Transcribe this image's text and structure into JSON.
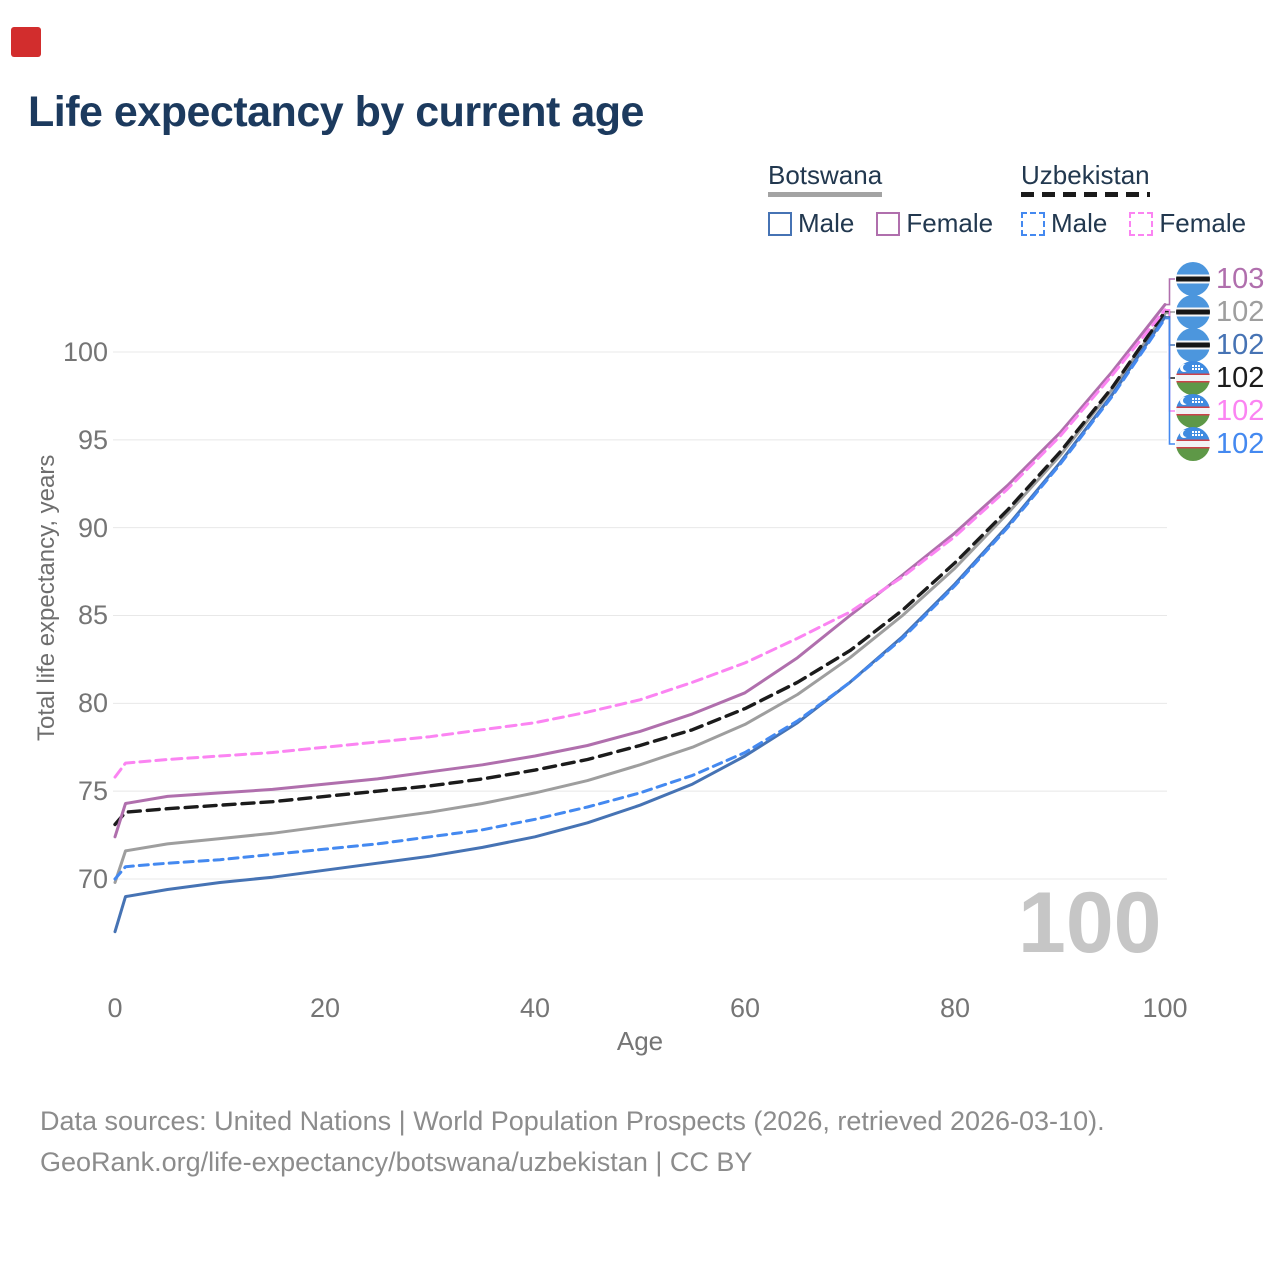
{
  "title": "Life expectancy by current age",
  "marker_color": "#d22d2d",
  "legend": {
    "groups": [
      {
        "label": "Botswana",
        "underline_style": "solid",
        "underline_color": "#a3a3a3",
        "items": [
          {
            "label": "Male",
            "color": "#4673b4",
            "dash": false
          },
          {
            "label": "Female",
            "color": "#b06fad",
            "dash": false
          }
        ]
      },
      {
        "label": "Uzbekistan",
        "underline_style": "dashed",
        "underline_color": "#1a1a1a",
        "items": [
          {
            "label": "Male",
            "color": "#4489f0",
            "dash": true
          },
          {
            "label": "Female",
            "color": "#fb84f2",
            "dash": true
          }
        ]
      }
    ]
  },
  "chart_data": {
    "type": "line",
    "title": "Life expectancy by current age",
    "xlabel": "Age",
    "ylabel": "Total life expectancy, years",
    "x_ticks": [
      0,
      20,
      40,
      60,
      80,
      100
    ],
    "y_ticks": [
      70,
      75,
      80,
      85,
      90,
      95,
      100
    ],
    "xlim": [
      0,
      100
    ],
    "ylim": [
      66,
      104
    ],
    "grid": "horizontal",
    "legend_position": "top-right",
    "hover_age_label": "100",
    "ages": [
      0,
      1,
      5,
      10,
      15,
      20,
      25,
      30,
      35,
      40,
      45,
      50,
      55,
      60,
      65,
      70,
      75,
      80,
      85,
      90,
      95,
      100
    ],
    "series": [
      {
        "name": "Botswana Female",
        "country": "Botswana",
        "sex": "Female",
        "style": "solid",
        "color": "#b06fad",
        "flag": "bw",
        "end_label": "103",
        "values": [
          72.4,
          74.3,
          74.7,
          74.9,
          75.1,
          75.4,
          75.7,
          76.1,
          76.5,
          77.0,
          77.6,
          78.4,
          79.4,
          80.6,
          82.6,
          85.0,
          87.3,
          89.7,
          92.4,
          95.4,
          98.9,
          102.7
        ]
      },
      {
        "name": "Botswana Both sexes",
        "country": "Botswana",
        "sex": "All",
        "style": "solid",
        "color": "#9e9e9e",
        "flag": "bw",
        "end_label": "102",
        "values": [
          69.8,
          71.6,
          72.0,
          72.3,
          72.6,
          73.0,
          73.4,
          73.8,
          74.3,
          74.9,
          75.6,
          76.5,
          77.5,
          78.8,
          80.5,
          82.6,
          85.0,
          87.7,
          90.8,
          94.1,
          97.9,
          102.2
        ]
      },
      {
        "name": "Botswana Male",
        "country": "Botswana",
        "sex": "Male",
        "style": "solid",
        "color": "#4673b4",
        "flag": "bw",
        "end_label": "102",
        "values": [
          67.0,
          69.0,
          69.4,
          69.8,
          70.1,
          70.5,
          70.9,
          71.3,
          71.8,
          72.4,
          73.2,
          74.2,
          75.4,
          77.0,
          78.9,
          81.2,
          83.8,
          86.8,
          90.1,
          93.7,
          97.6,
          102.0
        ]
      },
      {
        "name": "Uzbekistan Both sexes",
        "country": "Uzbekistan",
        "sex": "All",
        "style": "dashed",
        "color": "#1b1b1b",
        "flag": "uz",
        "end_label": "102",
        "values": [
          73.1,
          73.8,
          74.0,
          74.2,
          74.4,
          74.7,
          75.0,
          75.3,
          75.7,
          76.2,
          76.8,
          77.6,
          78.5,
          79.7,
          81.2,
          83.0,
          85.3,
          88.0,
          91.0,
          94.3,
          98.0,
          102.3
        ]
      },
      {
        "name": "Uzbekistan Female",
        "country": "Uzbekistan",
        "sex": "Female",
        "style": "dashed",
        "color": "#fb84f2",
        "flag": "uz",
        "end_label": "102",
        "values": [
          75.8,
          76.6,
          76.8,
          77.0,
          77.2,
          77.5,
          77.8,
          78.1,
          78.5,
          78.9,
          79.5,
          80.2,
          81.2,
          82.3,
          83.7,
          85.2,
          87.2,
          89.5,
          92.2,
          95.2,
          98.7,
          102.4
        ]
      },
      {
        "name": "Uzbekistan Male",
        "country": "Uzbekistan",
        "sex": "Male",
        "style": "dashed",
        "color": "#4489f0",
        "flag": "uz",
        "end_label": "102",
        "values": [
          70.0,
          70.7,
          70.9,
          71.1,
          71.4,
          71.7,
          72.0,
          72.4,
          72.8,
          73.4,
          74.1,
          74.9,
          75.9,
          77.2,
          79.0,
          81.2,
          83.7,
          86.7,
          90.0,
          93.6,
          97.5,
          101.9
        ]
      }
    ]
  },
  "footer": {
    "line1": "Data sources: United Nations | World Population Prospects (2026, retrieved 2026-03-10).",
    "line2": "GeoRank.org/life-expectancy/botswana/uzbekistan | CC BY"
  }
}
